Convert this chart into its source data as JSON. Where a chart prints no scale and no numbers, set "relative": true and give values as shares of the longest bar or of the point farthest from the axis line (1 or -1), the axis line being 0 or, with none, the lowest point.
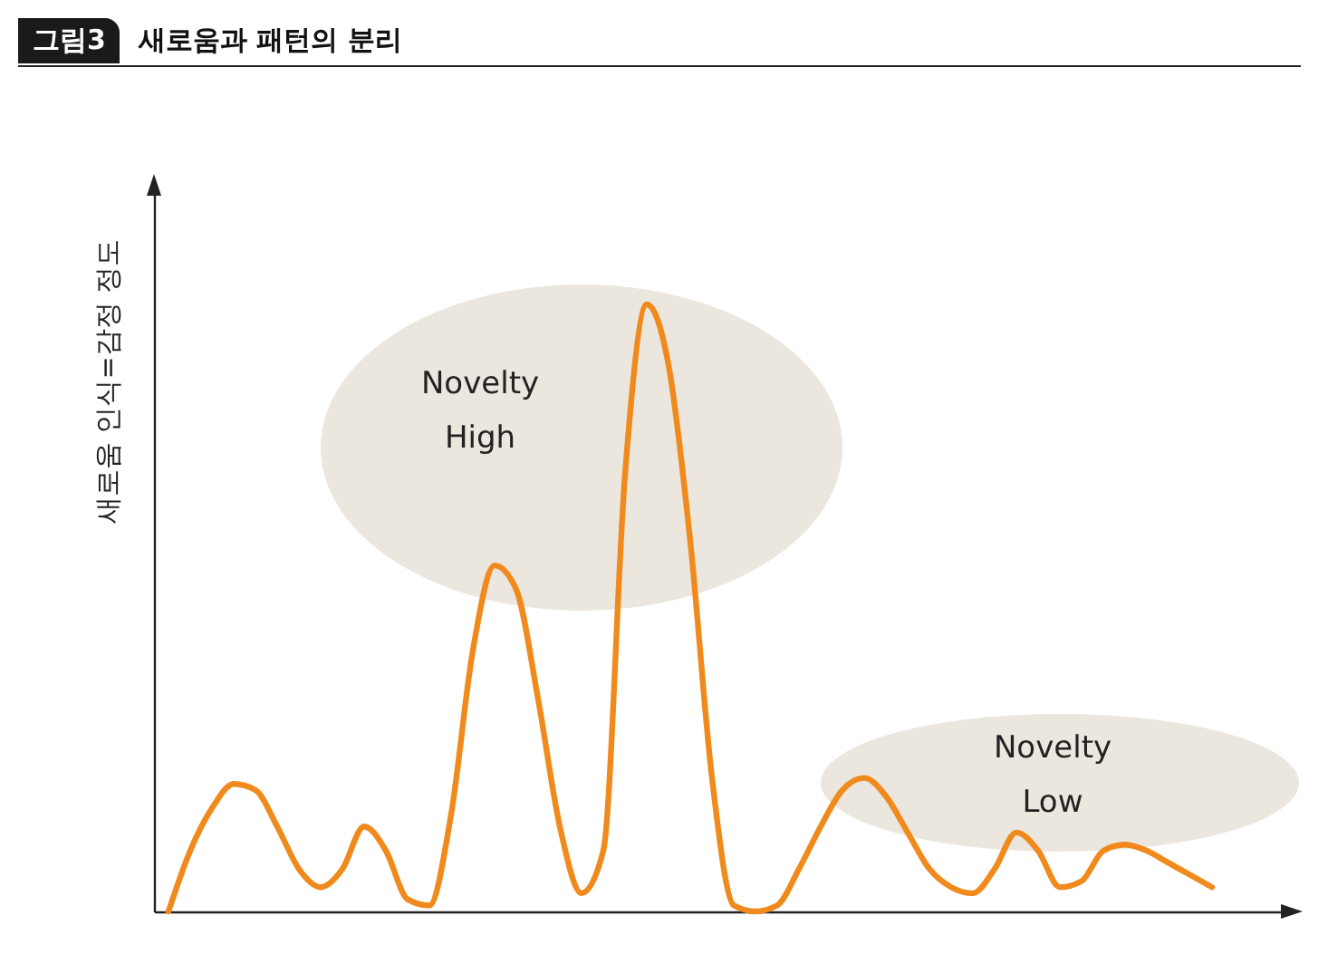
{
  "chart_data": {
    "type": "line",
    "title": "새로움과 패턴의 분리",
    "ylabel": "새로움 인식=감정 정도",
    "relative": true,
    "annotations": [
      "그림3",
      "Novelty High",
      "Novelty Low"
    ],
    "categories": [
      null,
      null,
      null,
      null,
      null,
      null,
      null,
      null,
      null,
      null,
      null,
      null,
      null,
      null,
      null,
      null,
      null,
      null,
      null,
      null,
      null,
      null,
      null,
      null,
      null,
      null,
      null,
      null,
      null,
      null,
      null,
      null,
      null,
      null,
      null,
      null,
      null,
      null,
      null,
      null,
      null,
      null,
      null,
      null,
      null,
      null,
      null,
      null,
      null
    ],
    "series": [
      {
        "color": "#f08a1c",
        "values": [
          0,
          0.1,
          0.17,
          0.21,
          0.2,
          0.14,
          0.07,
          0.04,
          0.07,
          0.14,
          0.1,
          0.02,
          0.01,
          0.16,
          0.43,
          0.57,
          0.53,
          0.35,
          0.14,
          0.03,
          0.1,
          0.72,
          1,
          0.9,
          0.61,
          0.22,
          0.01,
          0,
          0.01,
          0.07,
          0.14,
          0.2,
          0.22,
          0.19,
          0.13,
          0.07,
          0.04,
          0.03,
          0.07,
          0.13,
          0.1,
          0.04,
          0.05,
          0.1,
          0.11,
          0.1,
          0.08,
          0.06,
          0.04
        ]
      }
    ],
    "marker": "none",
    "line_style": "solid",
    "grid": false
  }
}
